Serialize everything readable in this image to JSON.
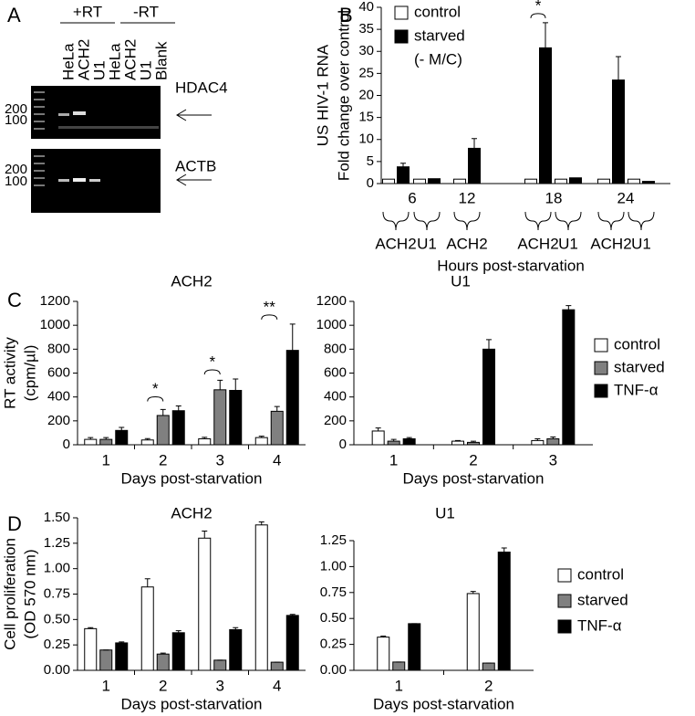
{
  "gel": {
    "panel_label": "A",
    "groups": [
      "+RT",
      "-RT"
    ],
    "lanes": [
      "HeLa",
      "ACH2",
      "U1",
      "HeLa",
      "ACH2",
      "U1",
      "Blank"
    ],
    "blots": [
      {
        "gene": "HDAC4",
        "markers": [
          "200",
          "100"
        ]
      },
      {
        "gene": "ACTB",
        "markers": [
          "200",
          "100"
        ]
      }
    ]
  },
  "chart_data": [
    {
      "type": "bar",
      "panel_label": "B",
      "ylabel": [
        "US HIV-1 RNA",
        "Fold change over control"
      ],
      "xlabel": "Hours post-starvation",
      "time_labels": [
        6,
        12,
        18,
        24
      ],
      "categories": [
        "ACH2",
        "U1",
        "ACH2",
        "ACH2",
        "U1",
        "ACH2",
        "U1"
      ],
      "series": [
        {
          "name": "control",
          "color": "#ffffff",
          "values": [
            1,
            1,
            1,
            1,
            1,
            1,
            1
          ]
        },
        {
          "name": "starved",
          "color": "#000000",
          "values": [
            3.8,
            1.1,
            8,
            30.8,
            1.3,
            23.5,
            0.5
          ],
          "errors": [
            0.8,
            null,
            2.2,
            5.7,
            null,
            5.3,
            null
          ]
        }
      ],
      "legend_note": "(- M/C)",
      "legend": "upper left",
      "annotations": [
        null,
        null,
        null,
        "*",
        null,
        null,
        null
      ],
      "ylim": [
        0,
        40
      ],
      "yticks": [
        0,
        5,
        10,
        15,
        20,
        25,
        30,
        35,
        40
      ]
    },
    {
      "type": "bar",
      "panel_label": "C",
      "title": "ACH2",
      "ylabel": [
        "RT activity",
        "(cpm/µl)"
      ],
      "xlabel": "Days post-starvation",
      "categories": [
        "1",
        "2",
        "3",
        "4"
      ],
      "series": [
        {
          "color": "#ffffff",
          "values": [
            45,
            40,
            50,
            60
          ],
          "errors": [
            15,
            12,
            12,
            12
          ]
        },
        {
          "color": "#808080",
          "values": [
            45,
            245,
            460,
            280
          ],
          "errors": [
            15,
            50,
            80,
            40
          ]
        },
        {
          "color": "#000000",
          "values": [
            120,
            285,
            455,
            790
          ],
          "errors": [
            25,
            40,
            95,
            220
          ]
        }
      ],
      "annotations": [
        null,
        "*",
        "*",
        "**"
      ],
      "ylim": [
        0,
        1200
      ],
      "yticks": [
        0,
        200,
        400,
        600,
        800,
        1000,
        1200
      ]
    },
    {
      "type": "bar",
      "title": "U1",
      "xlabel": "Days post-starvation",
      "categories": [
        "1",
        "2",
        "3"
      ],
      "series": [
        {
          "name": "control",
          "color": "#ffffff",
          "values": [
            115,
            30,
            35
          ],
          "errors": [
            25,
            5,
            15
          ]
        },
        {
          "name": "starved",
          "color": "#808080",
          "values": [
            30,
            20,
            50
          ],
          "errors": [
            15,
            10,
            15
          ]
        },
        {
          "name": "TNF-α",
          "color": "#000000",
          "values": [
            50,
            800,
            1130
          ],
          "errors": [
            10,
            80,
            35
          ]
        }
      ],
      "legend": "outside right",
      "ylim": [
        0,
        1200
      ],
      "yticks": [
        0,
        200,
        400,
        600,
        800,
        1000,
        1200
      ]
    },
    {
      "type": "bar",
      "panel_label": "D",
      "title": "ACH2",
      "ylabel": [
        "Cell proliferation",
        "(OD 570 nm)"
      ],
      "xlabel": "Days post-starvation",
      "categories": [
        "1",
        "2",
        "3",
        "4"
      ],
      "series": [
        {
          "color": "#ffffff",
          "values": [
            0.41,
            0.82,
            1.3,
            1.43
          ],
          "errors": [
            0.01,
            0.08,
            0.07,
            0.03
          ]
        },
        {
          "color": "#808080",
          "values": [
            0.2,
            0.16,
            0.1,
            0.08
          ],
          "errors": [
            0,
            0.01,
            0,
            0
          ]
        },
        {
          "color": "#000000",
          "values": [
            0.27,
            0.37,
            0.4,
            0.54
          ],
          "errors": [
            0.01,
            0.02,
            0.02,
            0.01
          ]
        }
      ],
      "ylim": [
        0,
        1.5
      ],
      "yticks": [
        {
          "value": 0,
          "label": "0.00"
        },
        {
          "value": 0.25,
          "label": "0.25"
        },
        {
          "value": 0.5,
          "label": "0.50"
        },
        {
          "value": 0.75,
          "label": "0.75"
        },
        {
          "value": 1,
          "label": "1.00"
        },
        {
          "value": 1.25,
          "label": "1.25"
        },
        {
          "value": 1.5,
          "label": "1.50"
        }
      ]
    },
    {
      "type": "bar",
      "title": "U1",
      "xlabel": "Days post-starvation",
      "categories": [
        "1",
        "2"
      ],
      "series": [
        {
          "name": "control",
          "color": "#ffffff",
          "values": [
            0.32,
            0.74
          ],
          "errors": [
            0.01,
            0.02
          ]
        },
        {
          "name": "starved",
          "color": "#808080",
          "values": [
            0.08,
            0.07
          ],
          "errors": [
            0,
            0
          ]
        },
        {
          "name": "TNF-α",
          "color": "#000000",
          "values": [
            0.45,
            1.14
          ],
          "errors": [
            0,
            0.04
          ]
        }
      ],
      "legend": "outside right",
      "ylim": [
        0,
        1.25
      ],
      "yticks": [
        {
          "value": 0,
          "label": "0.00"
        },
        {
          "value": 0.25,
          "label": "0.25"
        },
        {
          "value": 0.5,
          "label": "0.50"
        },
        {
          "value": 0.75,
          "label": "0.75"
        },
        {
          "value": 1,
          "label": "1.00"
        },
        {
          "value": 1.25,
          "label": "1.25"
        }
      ]
    }
  ]
}
